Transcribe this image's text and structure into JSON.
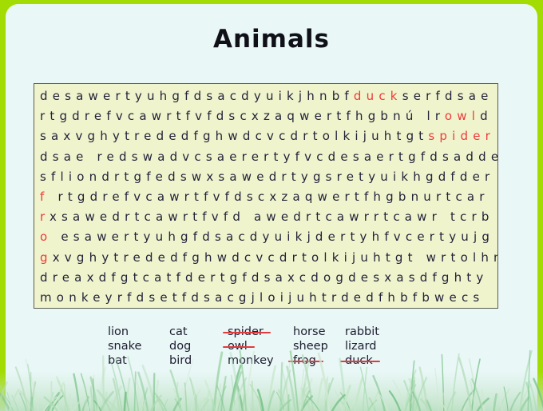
{
  "title": "Animals",
  "colors": {
    "frame": "#a3dc02",
    "page_bg": "#e9f7f7",
    "grid_bg": "#f0f4cd",
    "grid_border": "#5b5b4f",
    "letter": "#23233a",
    "highlight": "#ee3a3a",
    "strike": "#e23b3b"
  },
  "grid": {
    "rows": [
      {
        "segments": [
          {
            "text": "desawertyuhgfdsacdyuikjhnbf",
            "red": false
          },
          {
            "text": "duck",
            "red": true
          },
          {
            "text": "serfdsae",
            "red": false
          }
        ]
      },
      {
        "segments": [
          {
            "text": "rtgdrefvcawrtfvfdscxzaqwertfhgbnú lr",
            "red": false
          },
          {
            "text": "owl",
            "red": true
          },
          {
            "text": "d",
            "red": false
          }
        ]
      },
      {
        "segments": [
          {
            "text": "saxvghytrededfghwdcvcdrtolkijuhtgt",
            "red": false
          },
          {
            "text": "spider",
            "red": true
          }
        ]
      },
      {
        "segments": [
          {
            "text": "dsae redswadvcsaerertyfvcdesaertgfdsadde",
            "red": false
          }
        ]
      },
      {
        "segments": [
          {
            "text": "sfliondrtgfedswxsawedrtygsretyuikhgdfder",
            "red": false
          }
        ]
      },
      {
        "segments": [
          {
            "text": "f",
            "red": true
          },
          {
            "text": " rtgdrefvcawrtfvfdscxzaqwertfhgbnurtcar",
            "red": false
          }
        ]
      },
      {
        "segments": [
          {
            "text": "r",
            "red": true
          },
          {
            "text": "xsawedrtcawrtfvfd awedrtcawrrtcawr tcrb",
            "red": false
          }
        ]
      },
      {
        "segments": [
          {
            "text": "o",
            "red": true
          },
          {
            "text": " esawertyuhgfdsacdyuikjdertyhfvcertyujg",
            "red": false
          }
        ]
      },
      {
        "segments": [
          {
            "text": "g",
            "red": true
          },
          {
            "text": "xvghytrededfghwdcvcdrtolkijuhtgt wrtolhm",
            "red": false
          }
        ]
      },
      {
        "segments": [
          {
            "text": "dreaxdfgtcatfdertgfdsaxcdogdesxasdfghty",
            "red": false
          }
        ]
      },
      {
        "segments": [
          {
            "text": "monkeyrfdsetfdsacgjloijuhtrdedfhbfbwecs",
            "red": false
          }
        ]
      }
    ]
  },
  "word_list": {
    "columns": [
      {
        "words": [
          {
            "text": "lion",
            "struck": false
          },
          {
            "text": "snake",
            "struck": false
          },
          {
            "text": "bat",
            "struck": false
          }
        ]
      },
      {
        "words": [
          {
            "text": "cat",
            "struck": false
          },
          {
            "text": "dog",
            "struck": false
          },
          {
            "text": "bird",
            "struck": false
          }
        ]
      },
      {
        "words": [
          {
            "text": "spider",
            "struck": true
          },
          {
            "text": "owl",
            "struck": true
          },
          {
            "text": "monkey",
            "struck": false
          }
        ]
      },
      {
        "words": [
          {
            "text": "horse",
            "struck": false
          },
          {
            "text": "sheep",
            "struck": false
          },
          {
            "text": "frog",
            "struck": true
          }
        ]
      },
      {
        "words": [
          {
            "text": "rabbit",
            "struck": false
          },
          {
            "text": "lizard",
            "struck": false
          },
          {
            "text": "duck",
            "struck": true
          }
        ]
      }
    ]
  }
}
